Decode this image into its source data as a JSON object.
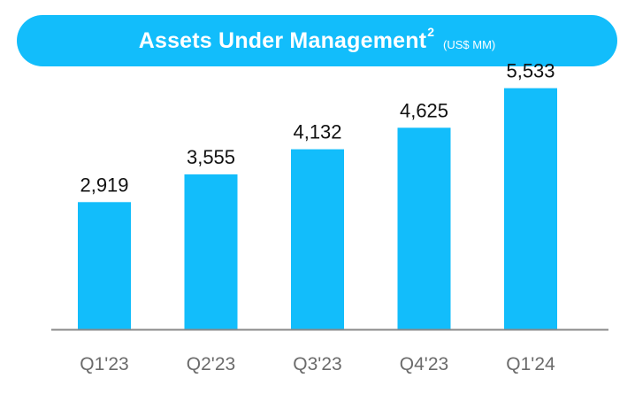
{
  "header": {
    "title": "Assets Under Management",
    "superscript": "2",
    "unit": "(US$ MM)"
  },
  "colors": {
    "accent": "#12bdfb",
    "axis": "#8a8a8a",
    "value_text": "#111111",
    "category_text": "#6b6b6b"
  },
  "chart_data": {
    "type": "bar",
    "title": "Assets Under Management",
    "unit": "US$ MM",
    "categories": [
      "Q1'23",
      "Q2'23",
      "Q3'23",
      "Q4'23",
      "Q1'24"
    ],
    "values": [
      2919,
      3555,
      4132,
      4625,
      5533
    ],
    "value_labels": [
      "2,919",
      "3,555",
      "4,132",
      "4,625",
      "5,533"
    ],
    "ylim": [
      0,
      6500
    ],
    "grid": false,
    "legend": "none"
  }
}
